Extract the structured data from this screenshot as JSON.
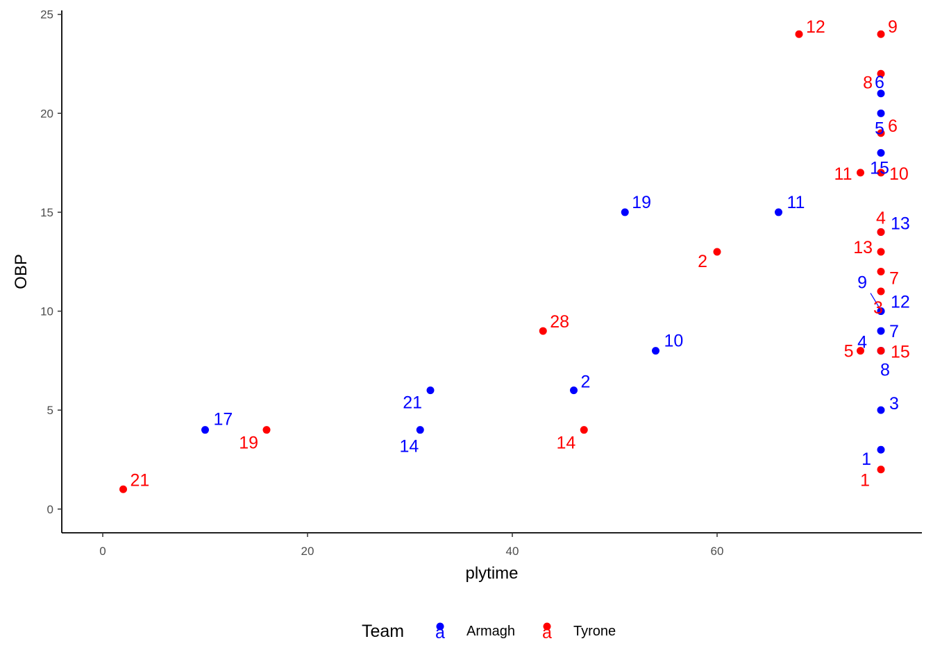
{
  "chart_data": {
    "type": "scatter",
    "title": "",
    "xlabel": "plytime",
    "ylabel": "OBP",
    "xlim": [
      -4,
      80
    ],
    "ylim": [
      -1.2,
      25.2
    ],
    "xticks": [
      0,
      20,
      40,
      60
    ],
    "yticks": [
      0,
      5,
      10,
      15,
      20,
      25
    ],
    "grid": false,
    "legend": {
      "title": "Team",
      "position": "bottom",
      "key_glyph": "a",
      "entries": [
        "Armagh",
        "Tyrone"
      ]
    },
    "series": [
      {
        "name": "Armagh",
        "color": "#0000ff",
        "points": [
          {
            "x": 10,
            "y": 4,
            "label": "17"
          },
          {
            "x": 31,
            "y": 4,
            "label": "14"
          },
          {
            "x": 32,
            "y": 6,
            "label": "21"
          },
          {
            "x": 46,
            "y": 6,
            "label": "2"
          },
          {
            "x": 51,
            "y": 15,
            "label": "19"
          },
          {
            "x": 54,
            "y": 8,
            "label": "10"
          },
          {
            "x": 66,
            "y": 15,
            "label": "11"
          },
          {
            "x": 76,
            "y": 21,
            "label": "6"
          },
          {
            "x": 76,
            "y": 20,
            "label": "5"
          },
          {
            "x": 76,
            "y": 18,
            "label": "15"
          },
          {
            "x": 76,
            "y": 14,
            "label": "13"
          },
          {
            "x": 76,
            "y": 10,
            "label": "9"
          },
          {
            "x": 76,
            "y": 10,
            "label": "12"
          },
          {
            "x": 76,
            "y": 9,
            "label": "7"
          },
          {
            "x": 76,
            "y": 8,
            "label": "4"
          },
          {
            "x": 76,
            "y": 8,
            "label": "8"
          },
          {
            "x": 76,
            "y": 5,
            "label": "3"
          },
          {
            "x": 76,
            "y": 3,
            "label": "1"
          }
        ]
      },
      {
        "name": "Tyrone",
        "color": "#ff0000",
        "points": [
          {
            "x": 2,
            "y": 1,
            "label": "21"
          },
          {
            "x": 16,
            "y": 4,
            "label": "19"
          },
          {
            "x": 43,
            "y": 9,
            "label": "28"
          },
          {
            "x": 47,
            "y": 4,
            "label": "14"
          },
          {
            "x": 60,
            "y": 13,
            "label": "2"
          },
          {
            "x": 68,
            "y": 24,
            "label": "12"
          },
          {
            "x": 74,
            "y": 17,
            "label": "11"
          },
          {
            "x": 74,
            "y": 8,
            "label": "5"
          },
          {
            "x": 76,
            "y": 24,
            "label": "9"
          },
          {
            "x": 76,
            "y": 22,
            "label": "8"
          },
          {
            "x": 76,
            "y": 19,
            "label": "6"
          },
          {
            "x": 76,
            "y": 17,
            "label": "10"
          },
          {
            "x": 76,
            "y": 14,
            "label": "4"
          },
          {
            "x": 76,
            "y": 13,
            "label": "13"
          },
          {
            "x": 76,
            "y": 12,
            "label": "7"
          },
          {
            "x": 76,
            "y": 11,
            "label": "3"
          },
          {
            "x": 76,
            "y": 8,
            "label": "15"
          },
          {
            "x": 76,
            "y": 2,
            "label": "1"
          }
        ]
      }
    ]
  }
}
